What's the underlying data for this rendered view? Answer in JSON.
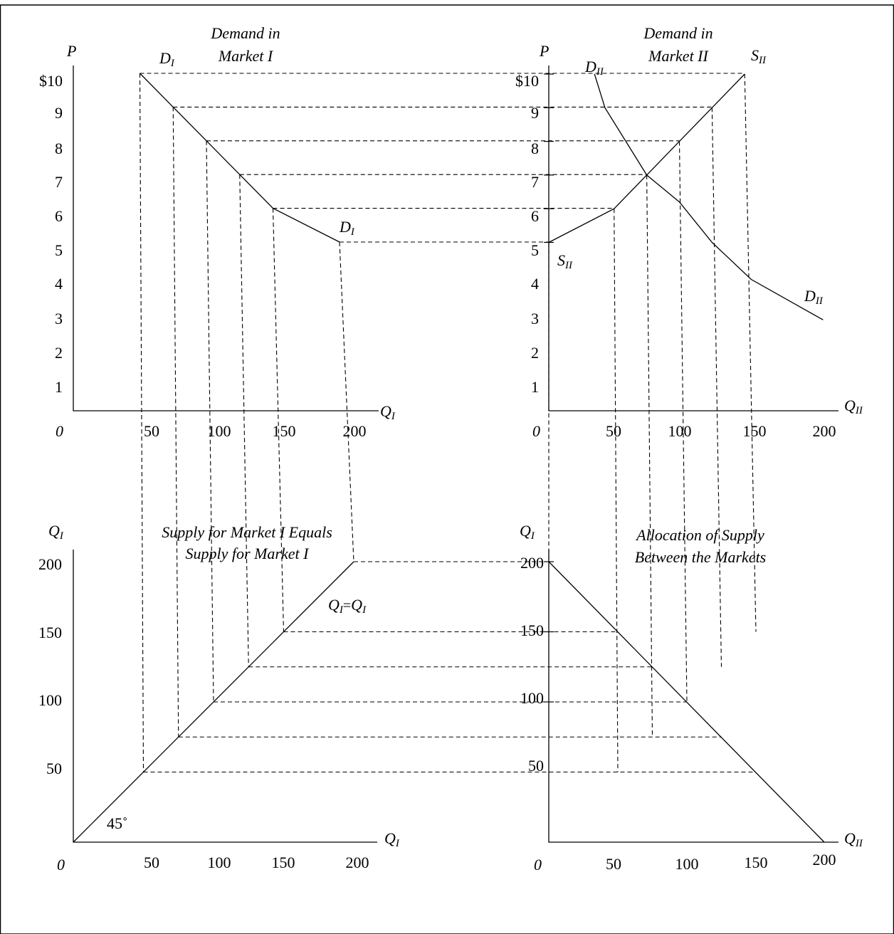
{
  "panels": {
    "top_left": {
      "title_lines": [
        "Demand in",
        "Market I"
      ],
      "y_axis_label": "P",
      "x_axis_label": {
        "main": "Q",
        "sub": "I"
      },
      "origin": "0",
      "price_ticks": [
        "$10",
        "9",
        "8",
        "7",
        "6",
        "5",
        "4",
        "3",
        "2",
        "1"
      ],
      "quantity_ticks": [
        "50",
        "100",
        "150",
        "200"
      ],
      "curve_labels": [
        {
          "main": "D",
          "sub": "I"
        },
        {
          "main": "D",
          "sub": "I"
        }
      ],
      "demand_curve": [
        {
          "q": 50,
          "p": 10
        },
        {
          "q": 75,
          "p": 9
        },
        {
          "q": 100,
          "p": 8
        },
        {
          "q": 125,
          "p": 7
        },
        {
          "q": 150,
          "p": 6
        },
        {
          "q": 200,
          "p": 5
        }
      ]
    },
    "top_right": {
      "title_lines": [
        "Demand in",
        "Market II"
      ],
      "y_axis_label": "P",
      "x_axis_label": {
        "main": "Q",
        "sub": "II"
      },
      "origin": "0",
      "price_ticks": [
        "$10",
        "9",
        "8",
        "7",
        "6",
        "5",
        "4",
        "3",
        "2",
        "1"
      ],
      "quantity_ticks": [
        "50",
        "100",
        "150",
        "200"
      ],
      "demand_labels": [
        {
          "main": "D",
          "sub": "II"
        },
        {
          "main": "D",
          "sub": "II"
        }
      ],
      "supply_labels": [
        {
          "main": "S",
          "sub": "II"
        },
        {
          "main": "S",
          "sub": "II"
        }
      ],
      "demand_curve": [
        {
          "q": 35,
          "p": 10
        },
        {
          "q": 43,
          "p": 9
        },
        {
          "q": 75,
          "p": 7
        },
        {
          "q": 100,
          "p": 6.2
        },
        {
          "q": 125,
          "p": 5
        },
        {
          "q": 155,
          "p": 3.9
        },
        {
          "q": 210,
          "p": 2.7
        }
      ],
      "supply_curve": [
        {
          "q": 0,
          "p": 5
        },
        {
          "q": 50,
          "p": 6
        },
        {
          "q": 75,
          "p": 7
        },
        {
          "q": 100,
          "p": 8
        },
        {
          "q": 125,
          "p": 9
        },
        {
          "q": 150,
          "p": 10
        }
      ]
    },
    "bottom_left": {
      "title_lines": [
        "Supply for Market I Equals",
        "Supply for Market I"
      ],
      "y_axis_label": {
        "main": "Q",
        "sub": "I"
      },
      "x_axis_label": {
        "main": "Q",
        "sub": "I"
      },
      "origin": "0",
      "y_ticks": [
        "200",
        "150",
        "100",
        "50"
      ],
      "x_ticks": [
        "50",
        "100",
        "150",
        "200"
      ],
      "line_label": {
        "left_main": "Q",
        "left_sub": "I",
        "eq": "=",
        "right_main": "Q",
        "right_sub": "I"
      },
      "angle_label": "45˚"
    },
    "bottom_right": {
      "title_lines": [
        "Allocation of Supply",
        "Between the Markets"
      ],
      "y_axis_label": {
        "main": "Q",
        "sub": "I"
      },
      "x_axis_label": {
        "main": "Q",
        "sub": "II"
      },
      "origin": "0",
      "y_ticks": [
        "200",
        "150",
        "100",
        "50"
      ],
      "x_ticks": [
        "50",
        "100",
        "150",
        "200"
      ]
    }
  },
  "guides": {
    "market1_points": [
      {
        "q": 50,
        "p": 10
      },
      {
        "q": 75,
        "p": 9
      },
      {
        "q": 100,
        "p": 8
      },
      {
        "q": 125,
        "p": 7
      },
      {
        "q": 150,
        "p": 6
      },
      {
        "q": 200,
        "p": 5
      }
    ],
    "market2_points": [
      {
        "q": 150,
        "p": 10
      },
      {
        "q": 125,
        "p": 9
      },
      {
        "q": 100,
        "p": 8
      },
      {
        "q": 75,
        "p": 7
      },
      {
        "q": 50,
        "p": 6
      },
      {
        "q": 0,
        "p": 5
      }
    ]
  }
}
